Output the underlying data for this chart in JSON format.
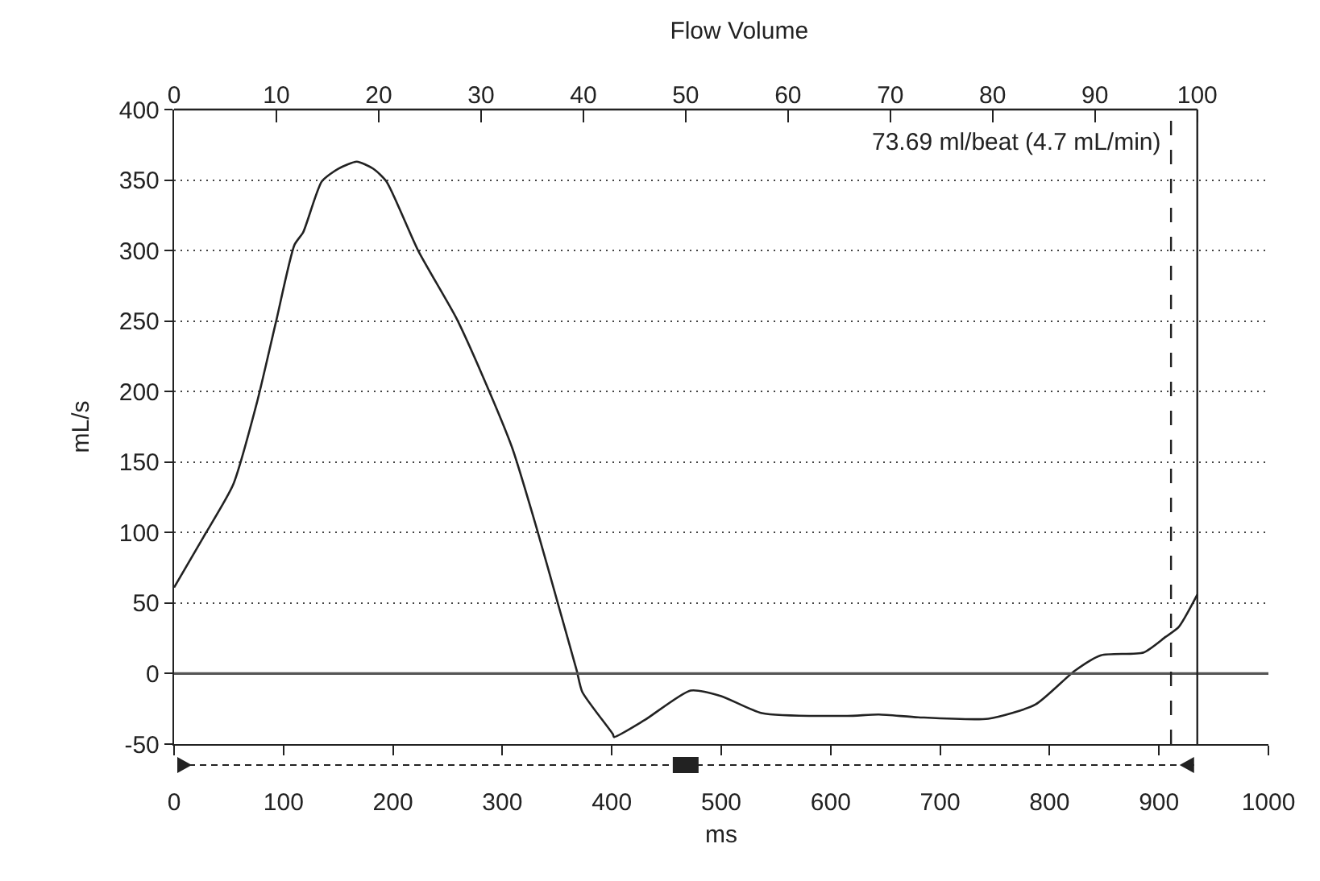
{
  "chart_data": {
    "type": "line",
    "title": "Flow Volume",
    "xlabel": "ms",
    "ylabel": "mL/s",
    "x": [
      0,
      27,
      54,
      76,
      93,
      110,
      118,
      135,
      150,
      167,
      182,
      194,
      223,
      258,
      282,
      309,
      331,
      351,
      368,
      373,
      401,
      402,
      430,
      472,
      500,
      537,
      615,
      644,
      680,
      744,
      787,
      823,
      847,
      886,
      906,
      918,
      935
    ],
    "series": [
      {
        "color": "#222222",
        "values": [
          61,
          97,
          134,
          193,
          249,
          304,
          313,
          349,
          358,
          363,
          358,
          349,
          300,
          252,
          211,
          160,
          104,
          49,
          2,
          -13,
          -43,
          -45,
          -33,
          -12,
          -16,
          -28,
          -30,
          -29,
          -31,
          -32,
          -22,
          2,
          13,
          15,
          26,
          33,
          56
        ]
      }
    ],
    "xlim": [
      0,
      1000
    ],
    "xticks": [
      0,
      100,
      200,
      300,
      400,
      500,
      600,
      700,
      800,
      900,
      1000
    ],
    "ylim": [
      -50,
      400
    ],
    "yticks": [
      -50,
      0,
      50,
      100,
      150,
      200,
      250,
      300,
      350,
      400
    ],
    "x2lim": [
      0,
      100
    ],
    "x2ticks": [
      0,
      10,
      20,
      30,
      40,
      50,
      60,
      70,
      80,
      90,
      100
    ],
    "ref_lines": [
      {
        "axis": "y",
        "value": 0,
        "color": "#555555",
        "line_style": "solid"
      },
      {
        "axis": "x",
        "value": 911,
        "color": "#222222",
        "line_style": "dashed"
      },
      {
        "axis": "x",
        "value": 935,
        "color": "#222222",
        "line_style": "solid"
      }
    ],
    "annotations": [
      "73.69 ml/beat (4.7 mL/min)"
    ],
    "grid": "y",
    "marker": "none",
    "line_style": "solid"
  }
}
